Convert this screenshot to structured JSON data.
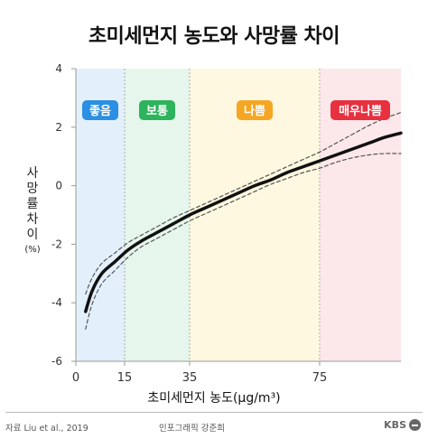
{
  "title": "초미세먼지 농도와 사망률 차이",
  "chart_data": {
    "type": "line",
    "xlabel": "초미세먼지 농도(μg/m³)",
    "ylabel": "사망률 차이",
    "ylabel_unit": "(%)",
    "xlim": [
      0,
      100
    ],
    "ylim": [
      -6,
      4
    ],
    "xticks": [
      0,
      15,
      35,
      75
    ],
    "yticks": [
      4,
      2,
      0,
      -2,
      -4,
      -6
    ],
    "grid": false,
    "zones": [
      {
        "label": "좋음",
        "from": 0,
        "to": 15,
        "fill": "#e3f0fb",
        "badge_color": "#2b8fe3"
      },
      {
        "label": "보통",
        "from": 15,
        "to": 35,
        "fill": "#e6f6ec",
        "badge_color": "#2db35c"
      },
      {
        "label": "나쁨",
        "from": 35,
        "to": 75,
        "fill": "#fff8e0",
        "badge_color": "#f5a623"
      },
      {
        "label": "매우나쁨",
        "from": 75,
        "to": 100,
        "fill": "#fce8ea",
        "badge_color": "#e8303f"
      }
    ],
    "series": [
      {
        "role": "estimate",
        "x": [
          3,
          5,
          8,
          12,
          16,
          20,
          25,
          30,
          35,
          40,
          45,
          50,
          55,
          60,
          65,
          70,
          75,
          80,
          85,
          90,
          95,
          100
        ],
        "y": [
          -4.3,
          -3.6,
          -3.0,
          -2.6,
          -2.2,
          -1.9,
          -1.6,
          -1.3,
          -1.0,
          -0.75,
          -0.5,
          -0.25,
          0.0,
          0.2,
          0.45,
          0.65,
          0.85,
          1.05,
          1.25,
          1.45,
          1.65,
          1.8
        ]
      },
      {
        "role": "upper",
        "x": [
          3,
          5,
          8,
          12,
          16,
          20,
          25,
          30,
          35,
          40,
          45,
          50,
          55,
          60,
          65,
          70,
          75,
          80,
          85,
          90,
          95,
          100
        ],
        "y": [
          -3.7,
          -3.15,
          -2.65,
          -2.3,
          -1.95,
          -1.7,
          -1.4,
          -1.1,
          -0.85,
          -0.6,
          -0.35,
          -0.1,
          0.15,
          0.4,
          0.65,
          0.9,
          1.15,
          1.45,
          1.75,
          2.05,
          2.3,
          2.5
        ]
      },
      {
        "role": "lower",
        "x": [
          3,
          5,
          8,
          12,
          16,
          20,
          25,
          30,
          35,
          40,
          45,
          50,
          55,
          60,
          65,
          70,
          75,
          80,
          85,
          90,
          95,
          100
        ],
        "y": [
          -4.9,
          -4.05,
          -3.35,
          -2.9,
          -2.45,
          -2.1,
          -1.8,
          -1.5,
          -1.2,
          -0.95,
          -0.7,
          -0.45,
          -0.2,
          0.05,
          0.25,
          0.45,
          0.6,
          0.8,
          0.95,
          1.05,
          1.1,
          1.1
        ]
      }
    ],
    "colors": {
      "estimate": "#111111",
      "interval": "#555555"
    }
  },
  "footer": {
    "source": "자료 Liu et al., 2019",
    "credit": "인포그래픽 강준희",
    "logo": "KBS"
  }
}
